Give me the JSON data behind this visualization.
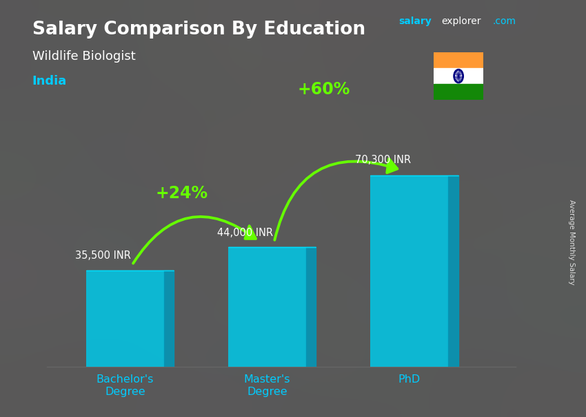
{
  "title": "Salary Comparison By Education",
  "subtitle": "Wildlife Biologist",
  "country": "India",
  "categories": [
    "Bachelor's\nDegree",
    "Master's\nDegree",
    "PhD"
  ],
  "values": [
    35500,
    44000,
    70300
  ],
  "value_labels": [
    "35,500 INR",
    "44,000 INR",
    "70,300 INR"
  ],
  "bar_color": "#00c8e8",
  "bar_color_right": "#0099bb",
  "bar_color_top": "#00e0ff",
  "background_color": "#4a4a5a",
  "title_color": "#ffffff",
  "subtitle_color": "#ffffff",
  "country_color": "#00ccff",
  "label_color": "#ffffff",
  "tick_color": "#00ccff",
  "arrow_color": "#66ff00",
  "pct_labels": [
    "+24%",
    "+60%"
  ],
  "watermark_salary": "salary",
  "watermark_explorer": "explorer",
  "watermark_com": ".com",
  "ylabel": "Average Monthly Salary",
  "bar_width": 0.55,
  "bar_depth": 0.07,
  "ylim": [
    0,
    92000
  ],
  "flag_colors": [
    "#FF9933",
    "#ffffff",
    "#138808"
  ],
  "flag_chakra": "#000080"
}
